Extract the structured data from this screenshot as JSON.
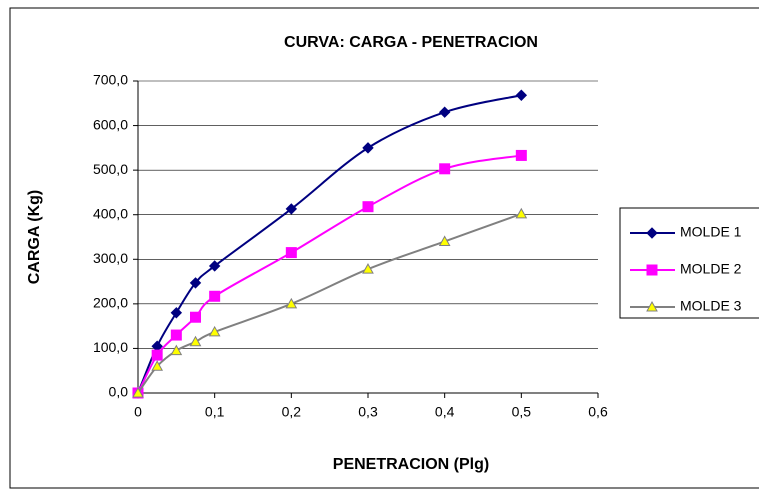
{
  "chart_data": {
    "type": "scatter-smooth",
    "title": "CURVA: CARGA - PENETRACION",
    "x_label": "PENETRACION (Plg)",
    "y_label": "CARGA (Kg)",
    "x": [
      0,
      0.025,
      0.05,
      0.075,
      0.1,
      0.2,
      0.3,
      0.4,
      0.5
    ],
    "series": [
      {
        "name": "MOLDE 1",
        "color": "#000080",
        "marker": "diamond",
        "marker_fill": "#000080",
        "values": [
          0,
          105,
          180,
          247,
          285,
          413,
          550,
          630,
          668
        ]
      },
      {
        "name": "MOLDE 2",
        "color": "#ff00ff",
        "marker": "square",
        "marker_fill": "#ff00ff",
        "values": [
          0,
          85,
          130,
          170,
          217,
          315,
          418,
          503,
          533
        ]
      },
      {
        "name": "MOLDE 3",
        "color": "#808080",
        "marker": "triangle",
        "marker_fill": "#ffff00",
        "values": [
          0,
          60,
          95,
          115,
          137,
          200,
          278,
          340,
          402
        ]
      }
    ],
    "xlim": [
      0,
      0.6
    ],
    "xticks": [
      0,
      {
        "value": 0.1,
        "label": "0,1"
      },
      {
        "value": 0.2,
        "label": "0,2"
      },
      {
        "value": 0.3,
        "label": "0,3"
      },
      {
        "value": 0.4,
        "label": "0,4"
      },
      {
        "value": 0.5,
        "label": "0,5"
      },
      {
        "value": 0.6,
        "label": "0,6"
      }
    ],
    "ylim": [
      0,
      700
    ],
    "yticks": [
      {
        "value": 0,
        "label": "0,0"
      },
      {
        "value": 100,
        "label": "100,0"
      },
      {
        "value": 200,
        "label": "200,0"
      },
      {
        "value": 300,
        "label": "300,0"
      },
      {
        "value": 400,
        "label": "400,0"
      },
      {
        "value": 500,
        "label": "500,0"
      },
      {
        "value": 600,
        "label": "600,0"
      },
      {
        "value": 700,
        "label": "700,0"
      }
    ],
    "grid": true,
    "legend": "right"
  }
}
